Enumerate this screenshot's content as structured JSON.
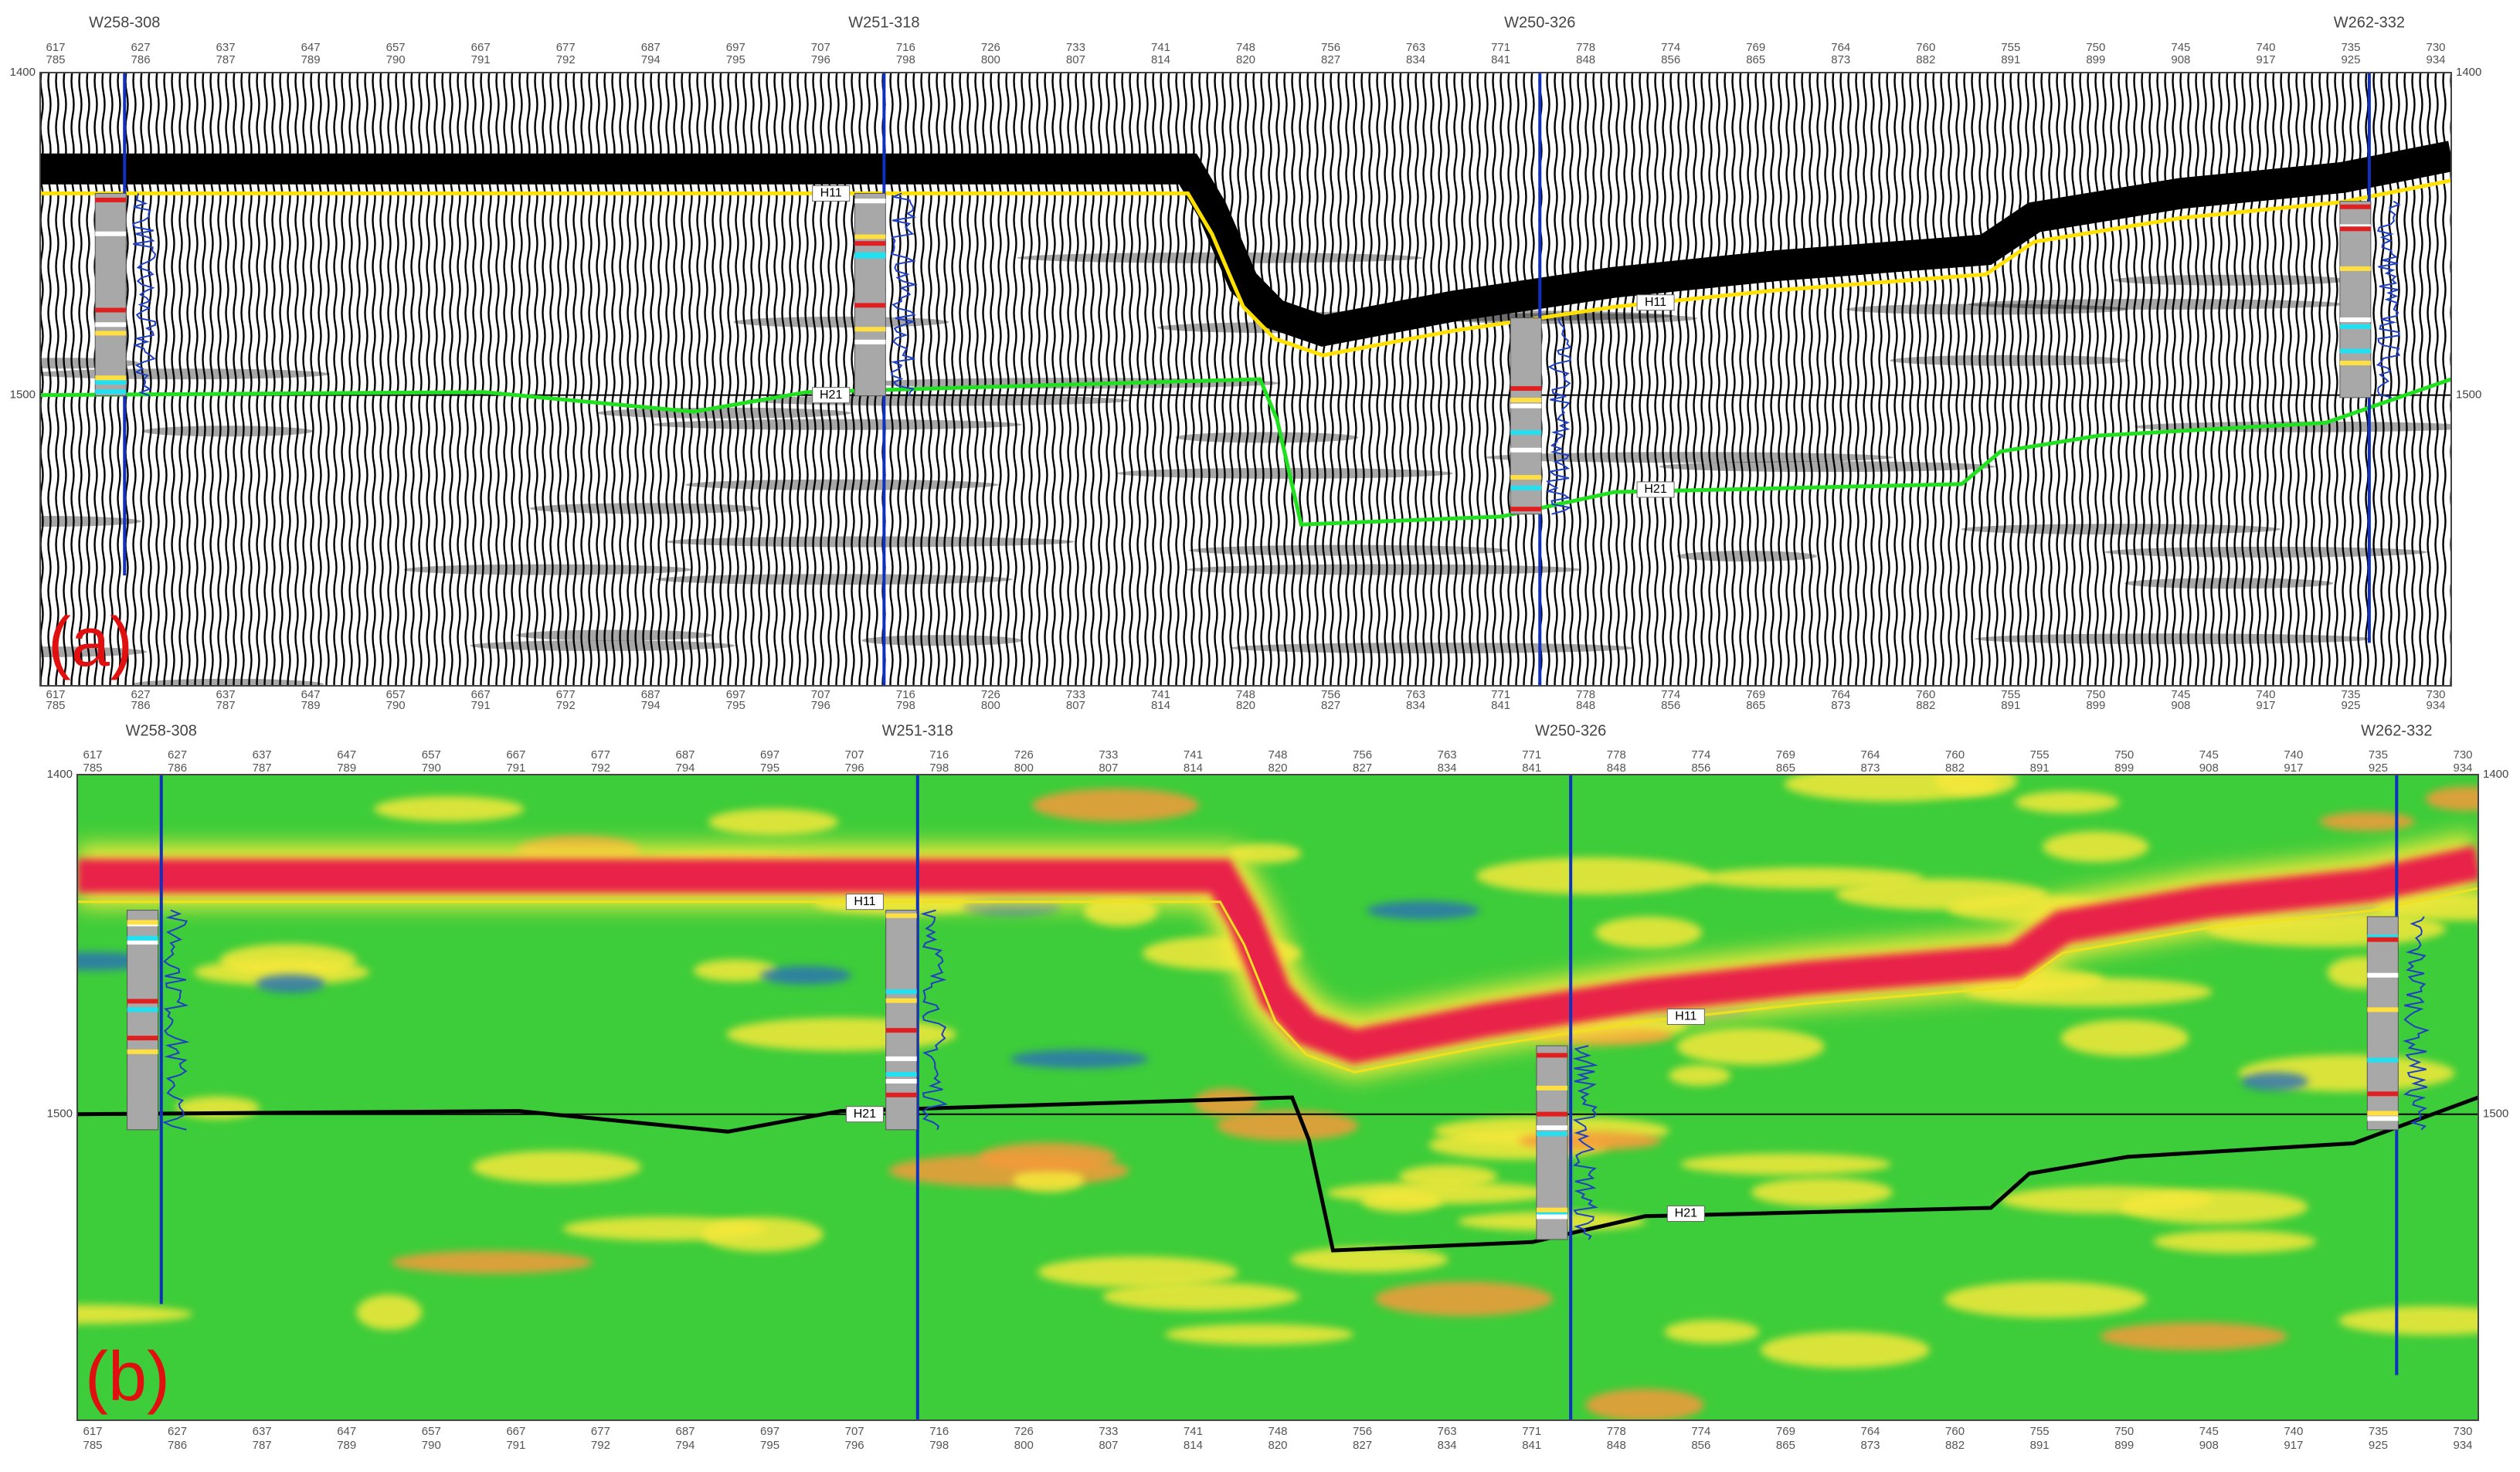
{
  "panels": [
    {
      "label": "(a)",
      "wells": [
        "W258-308",
        "W251-318",
        "W250-326",
        "W262-332"
      ],
      "time_labels": [
        "1400",
        "1500"
      ],
      "horizons": [
        "H11",
        "H21"
      ],
      "trace_row1": [
        "617",
        "627",
        "637",
        "647",
        "657",
        "667",
        "677",
        "687",
        "697",
        "707",
        "716",
        "726",
        "733",
        "741",
        "748",
        "756",
        "763",
        "771",
        "778",
        "774",
        "769",
        "764",
        "760",
        "755",
        "750",
        "745",
        "740",
        "735",
        "730"
      ],
      "trace_row2": [
        "785",
        "786",
        "787",
        "789",
        "790",
        "791",
        "792",
        "794",
        "795",
        "796",
        "798",
        "800",
        "807",
        "814",
        "820",
        "827",
        "834",
        "841",
        "848",
        "856",
        "865",
        "873",
        "882",
        "891",
        "899",
        "908",
        "917",
        "925",
        "934"
      ]
    },
    {
      "label": "(b)",
      "wells": [
        "W258-308",
        "W251-318",
        "W250-326",
        "W262-332"
      ],
      "time_labels": [
        "1400",
        "1500"
      ],
      "horizons": [
        "H11",
        "H21"
      ],
      "trace_row1": [
        "617",
        "627",
        "637",
        "647",
        "657",
        "667",
        "677",
        "687",
        "697",
        "707",
        "716",
        "726",
        "733",
        "741",
        "748",
        "756",
        "763",
        "771",
        "778",
        "774",
        "769",
        "764",
        "760",
        "755",
        "750",
        "745",
        "740",
        "735",
        "730"
      ],
      "trace_row2": [
        "785",
        "786",
        "787",
        "789",
        "790",
        "791",
        "792",
        "794",
        "795",
        "796",
        "798",
        "800",
        "807",
        "814",
        "820",
        "827",
        "834",
        "841",
        "848",
        "856",
        "865",
        "873",
        "882",
        "891",
        "899",
        "908",
        "917",
        "925",
        "934"
      ]
    }
  ]
}
